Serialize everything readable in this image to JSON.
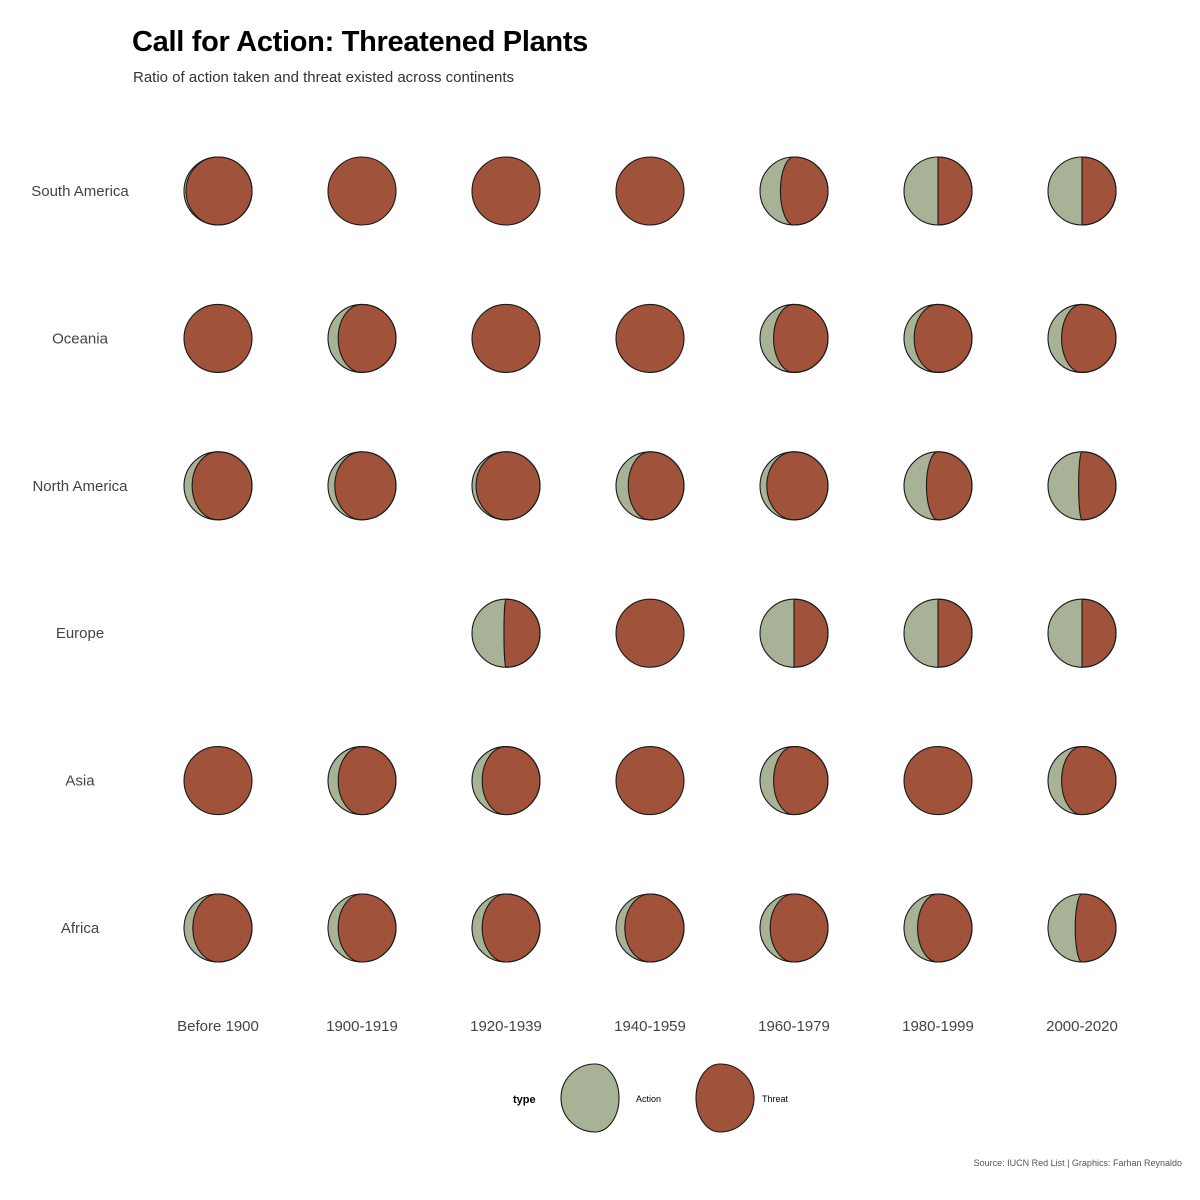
{
  "chart_data": {
    "type": "moon",
    "title": "Call for Action: Threatened Plants",
    "subtitle": "Ratio of action taken and threat existed across continents",
    "caption": "Source: IUCN Red List | Graphics: Farhan Reynaldo",
    "x": [
      "Before 1900",
      "1900-1919",
      "1920-1939",
      "1940-1959",
      "1960-1979",
      "1980-1999",
      "2000-2020"
    ],
    "y": [
      "South America",
      "Oceania",
      "North America",
      "Europe",
      "Asia",
      "Africa"
    ],
    "value_meaning": "share of Action (0 = all Threat, 0.5 = half and half); null = no data",
    "series": [
      {
        "name": "South America",
        "values": [
          0.03,
          0.0,
          0.0,
          0.0,
          0.3,
          0.5,
          0.5
        ]
      },
      {
        "name": "Oceania",
        "values": [
          0.0,
          0.15,
          0.0,
          0.0,
          0.2,
          0.15,
          0.2
        ]
      },
      {
        "name": "North America",
        "values": [
          0.12,
          0.1,
          0.06,
          0.18,
          0.1,
          0.33,
          0.45
        ]
      },
      {
        "name": "Europe",
        "values": [
          null,
          null,
          0.47,
          0.0,
          0.5,
          0.5,
          0.5
        ]
      },
      {
        "name": "Asia",
        "values": [
          0.0,
          0.15,
          0.15,
          0.0,
          0.2,
          0.0,
          0.2
        ]
      },
      {
        "name": "Africa",
        "values": [
          0.13,
          0.15,
          0.15,
          0.13,
          0.15,
          0.2,
          0.4
        ]
      }
    ],
    "legend": {
      "title": "type",
      "position": "bottom",
      "items": [
        {
          "label": "Action",
          "color": "#a8b296"
        },
        {
          "label": "Threat",
          "color": "#a0523a"
        }
      ]
    },
    "colors": {
      "action": "#a8b296",
      "threat": "#a0523a",
      "outline": "#1a1a1a"
    },
    "grid": false
  }
}
